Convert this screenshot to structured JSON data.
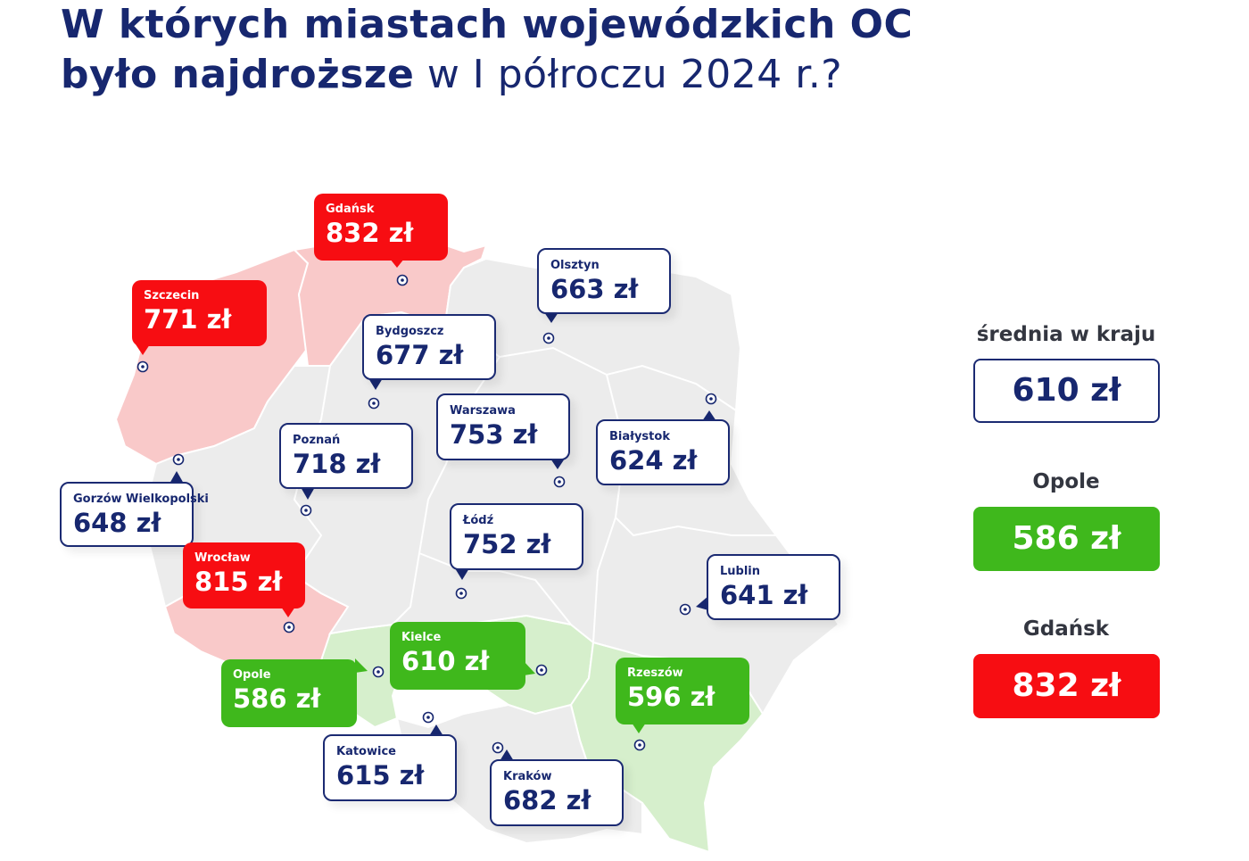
{
  "title": {
    "line1": "W których miastach wojewódzkich OC",
    "line2_bold": "było najdroższe",
    "line2_light": " w I półroczu 2024 r.?"
  },
  "colors": {
    "dark_blue": "#17276f",
    "red": "#f70d12",
    "green": "#3fb81c",
    "region_grey": "#ececec",
    "region_red": "#f9c9c9",
    "region_green": "#d6efcc"
  },
  "cities": [
    {
      "id": "gdansk",
      "name": "Gdańsk",
      "price": "832 zł",
      "style": "red"
    },
    {
      "id": "szczecin",
      "name": "Szczecin",
      "price": "771 zł",
      "style": "red"
    },
    {
      "id": "olsztyn",
      "name": "Olsztyn",
      "price": "663 zł",
      "style": "white"
    },
    {
      "id": "bydgoszcz",
      "name": "Bydgoszcz",
      "price": "677 zł",
      "style": "white"
    },
    {
      "id": "warszawa",
      "name": "Warszawa",
      "price": "753 zł",
      "style": "white"
    },
    {
      "id": "bialystok",
      "name": "Białystok",
      "price": "624 zł",
      "style": "white"
    },
    {
      "id": "poznan",
      "name": "Poznań",
      "price": "718 zł",
      "style": "white"
    },
    {
      "id": "gorzow",
      "name": "Gorzów Wielkopolski",
      "price": "648 zł",
      "style": "white"
    },
    {
      "id": "lodz",
      "name": "Łódź",
      "price": "752 zł",
      "style": "white"
    },
    {
      "id": "wroclaw",
      "name": "Wrocław",
      "price": "815 zł",
      "style": "red"
    },
    {
      "id": "lublin",
      "name": "Lublin",
      "price": "641 zł",
      "style": "white"
    },
    {
      "id": "kielce",
      "name": "Kielce",
      "price": "610 zł",
      "style": "green"
    },
    {
      "id": "opole",
      "name": "Opole",
      "price": "586 zł",
      "style": "green"
    },
    {
      "id": "rzeszow",
      "name": "Rzeszów",
      "price": "596 zł",
      "style": "green"
    },
    {
      "id": "katowice",
      "name": "Katowice",
      "price": "615 zł",
      "style": "white"
    },
    {
      "id": "krakow",
      "name": "Kraków",
      "price": "682 zł",
      "style": "white"
    }
  ],
  "summary": {
    "average_label": "średnia w kraju",
    "average_value": "610 zł",
    "cheapest_label": "Opole",
    "cheapest_value": "586 zł",
    "priciest_label": "Gdańsk",
    "priciest_value": "832 zł"
  }
}
